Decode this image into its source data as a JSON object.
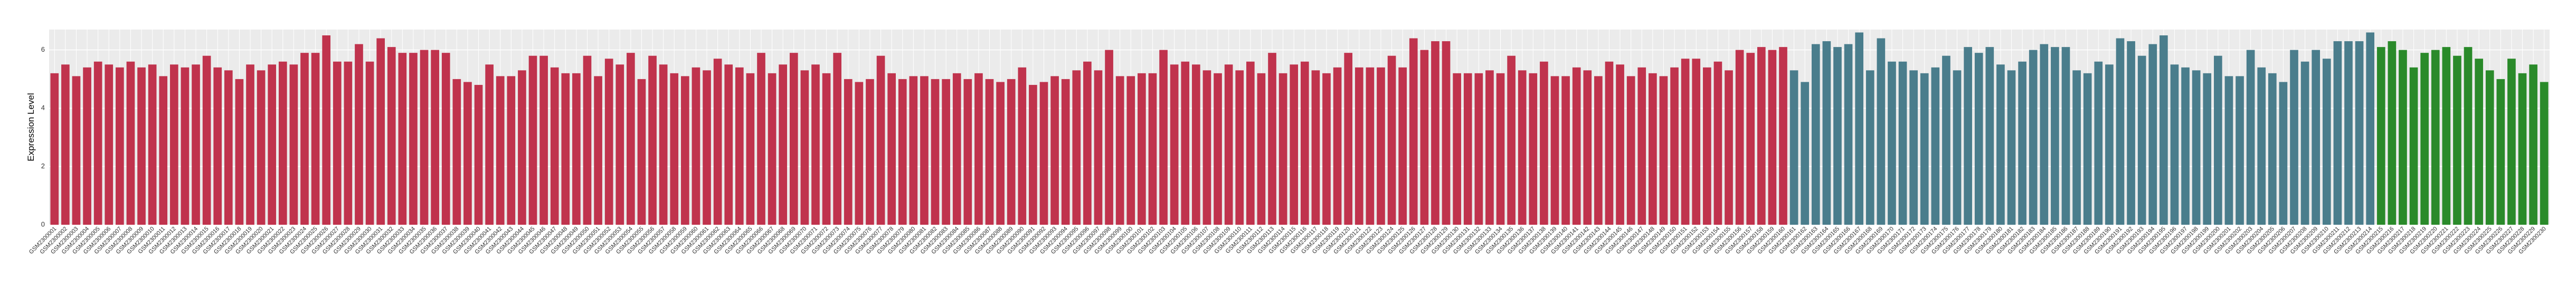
{
  "chart_data": {
    "type": "bar",
    "y_label": "Expression Level",
    "ylim": [
      0,
      6.7
    ],
    "yticks": [
      0,
      2,
      4,
      6
    ],
    "grid": true,
    "categories": [
      "GSM2300001",
      "GSM2300002",
      "GSM2300003",
      "GSM2300004",
      "GSM2300005",
      "GSM2300006",
      "GSM2300007",
      "GSM2300008",
      "GSM2300009",
      "GSM2300010",
      "GSM2300011",
      "GSM2300012",
      "GSM2300013",
      "GSM2300014",
      "GSM2300015",
      "GSM2300016",
      "GSM2300017",
      "GSM2300018",
      "GSM2300019",
      "GSM2300020",
      "GSM2300021",
      "GSM2300022",
      "GSM2300023",
      "GSM2300024",
      "GSM2300025",
      "GSM2300026",
      "GSM2300027",
      "GSM2300028",
      "GSM2300029",
      "GSM2300030",
      "GSM2300031",
      "GSM2300032",
      "GSM2300033",
      "GSM2300034",
      "GSM2300035",
      "GSM2300036",
      "GSM2300037",
      "GSM2300038",
      "GSM2300039",
      "GSM2300040",
      "GSM2300041",
      "GSM2300042",
      "GSM2300043",
      "GSM2300044",
      "GSM2300045",
      "GSM2300046",
      "GSM2300047",
      "GSM2300048",
      "GSM2300049",
      "GSM2300050",
      "GSM2300051",
      "GSM2300052",
      "GSM2300053",
      "GSM2300054",
      "GSM2300055",
      "GSM2300056",
      "GSM2300057",
      "GSM2300058",
      "GSM2300059",
      "GSM2300060",
      "GSM2300061",
      "GSM2300062",
      "GSM2300063",
      "GSM2300064",
      "GSM2300065",
      "GSM2300066",
      "GSM2300067",
      "GSM2300068",
      "GSM2300069",
      "GSM2300070",
      "GSM2300071",
      "GSM2300072",
      "GSM2300073",
      "GSM2300074",
      "GSM2300075",
      "GSM2300076",
      "GSM2300077",
      "GSM2300078",
      "GSM2300079",
      "GSM2300080",
      "GSM2300081",
      "GSM2300082",
      "GSM2300083",
      "GSM2300084",
      "GSM2300085",
      "GSM2300086",
      "GSM2300087",
      "GSM2300088",
      "GSM2300089",
      "GSM2300090",
      "GSM2300091",
      "GSM2300092",
      "GSM2300093",
      "GSM2300094",
      "GSM2300095",
      "GSM2300096",
      "GSM2300097",
      "GSM2300098",
      "GSM2300099",
      "GSM2300100",
      "GSM2300101",
      "GSM2300102",
      "GSM2300103",
      "GSM2300104",
      "GSM2300105",
      "GSM2300106",
      "GSM2300107",
      "GSM2300108",
      "GSM2300109",
      "GSM2300110",
      "GSM2300111",
      "GSM2300112",
      "GSM2300113",
      "GSM2300114",
      "GSM2300115",
      "GSM2300116",
      "GSM2300117",
      "GSM2300118",
      "GSM2300119",
      "GSM2300120",
      "GSM2300121",
      "GSM2300122",
      "GSM2300123",
      "GSM2300124",
      "GSM2300125",
      "GSM2300126",
      "GSM2300127",
      "GSM2300128",
      "GSM2300129",
      "GSM2300130",
      "GSM2300131",
      "GSM2300132",
      "GSM2300133",
      "GSM2300134",
      "GSM2300135",
      "GSM2300136",
      "GSM2300137",
      "GSM2300138",
      "GSM2300139",
      "GSM2300140",
      "GSM2300141",
      "GSM2300142",
      "GSM2300143",
      "GSM2300144",
      "GSM2300145",
      "GSM2300146",
      "GSM2300147",
      "GSM2300148",
      "GSM2300149",
      "GSM2300150",
      "GSM2300151",
      "GSM2300152",
      "GSM2300153",
      "GSM2300154",
      "GSM2300155",
      "GSM2300156",
      "GSM2300157",
      "GSM2300158",
      "GSM2300159",
      "GSM2300160",
      "GSM2300161",
      "GSM2300162",
      "GSM2300163",
      "GSM2300164",
      "GSM2300165",
      "GSM2300166",
      "GSM2300167",
      "GSM2300168",
      "GSM2300169",
      "GSM2300170",
      "GSM2300171",
      "GSM2300172",
      "GSM2300173",
      "GSM2300174",
      "GSM2300175",
      "GSM2300176",
      "GSM2300177",
      "GSM2300178",
      "GSM2300179",
      "GSM2300180",
      "GSM2300181",
      "GSM2300182",
      "GSM2300183",
      "GSM2300184",
      "GSM2300185",
      "GSM2300186",
      "GSM2300187",
      "GSM2300188",
      "GSM2300189",
      "GSM2300190",
      "GSM2300191",
      "GSM2300192",
      "GSM2300193",
      "GSM2300194",
      "GSM2300195",
      "GSM2300196",
      "GSM2300197",
      "GSM2300198",
      "GSM2300199",
      "GSM2300200",
      "GSM2300201",
      "GSM2300202",
      "GSM2300203",
      "GSM2300204",
      "GSM2300205",
      "GSM2300206",
      "GSM2300207",
      "GSM2300208",
      "GSM2300209",
      "GSM2300210",
      "GSM2300211",
      "GSM2300212",
      "GSM2300213",
      "GSM2300214",
      "GSM2300215",
      "GSM2300216",
      "GSM2300217",
      "GSM2300218",
      "GSM2300219",
      "GSM2300220",
      "GSM2300221",
      "GSM2300222",
      "GSM2300223",
      "GSM2300224",
      "GSM2300225",
      "GSM2300226",
      "GSM2300227",
      "GSM2300228",
      "GSM2300229",
      "GSM2300230"
    ],
    "values": [
      5.2,
      5.5,
      5.1,
      5.4,
      5.6,
      5.5,
      5.4,
      5.6,
      5.4,
      5.5,
      5.1,
      5.5,
      5.4,
      5.5,
      5.8,
      5.4,
      5.3,
      5.0,
      5.5,
      5.3,
      5.5,
      5.6,
      5.5,
      5.9,
      5.9,
      6.5,
      5.6,
      5.6,
      6.2,
      5.6,
      6.4,
      6.1,
      5.9,
      5.9,
      6.0,
      6.0,
      5.9,
      5.0,
      4.9,
      4.8,
      5.5,
      5.1,
      5.1,
      5.3,
      5.8,
      5.8,
      5.4,
      5.2,
      5.2,
      5.8,
      5.1,
      5.7,
      5.5,
      5.9,
      5.0,
      5.8,
      5.5,
      5.2,
      5.1,
      5.4,
      5.3,
      5.7,
      5.5,
      5.4,
      5.2,
      5.9,
      5.2,
      5.5,
      5.9,
      5.3,
      5.5,
      5.2,
      5.9,
      5.0,
      4.9,
      5.0,
      5.8,
      5.2,
      5.0,
      5.1,
      5.1,
      5.0,
      5.0,
      5.2,
      5.0,
      5.2,
      5.0,
      4.9,
      5.0,
      5.4,
      4.8,
      4.9,
      5.1,
      5.0,
      5.3,
      5.6,
      5.3,
      6.0,
      5.1,
      5.1,
      5.2,
      5.2,
      6.0,
      5.5,
      5.6,
      5.5,
      5.3,
      5.2,
      5.5,
      5.3,
      5.6,
      5.2,
      5.9,
      5.2,
      5.5,
      5.6,
      5.3,
      5.2,
      5.4,
      5.9,
      5.4,
      5.4,
      5.4,
      5.8,
      5.4,
      6.4,
      6.0,
      6.3,
      6.3,
      5.2,
      5.2,
      5.2,
      5.3,
      5.2,
      5.8,
      5.3,
      5.2,
      5.6,
      5.1,
      5.1,
      5.4,
      5.3,
      5.1,
      5.6,
      5.5,
      5.1,
      5.4,
      5.2,
      5.1,
      5.4,
      5.7,
      5.7,
      5.4,
      5.6,
      5.3,
      6.0,
      5.9,
      6.1,
      6.0,
      6.1,
      5.3,
      4.9,
      6.2,
      6.3,
      6.1,
      6.2,
      6.6,
      5.3,
      6.4,
      5.6,
      5.6,
      5.3,
      5.2,
      5.4,
      5.8,
      5.3,
      6.1,
      5.9,
      6.1,
      5.5,
      5.3,
      5.6,
      6.0,
      6.2,
      6.1,
      6.1,
      5.3,
      5.2,
      5.6,
      5.5,
      6.4,
      6.3,
      5.8,
      6.2,
      6.5,
      5.5,
      5.4,
      5.3,
      5.2,
      5.8,
      5.1,
      5.1,
      6.0,
      5.4,
      5.2,
      4.9,
      6.0,
      5.6,
      6.0,
      5.7,
      6.3,
      6.3,
      6.3,
      6.6,
      6.1,
      6.3,
      6.0,
      5.4,
      5.9,
      6.0,
      6.1,
      5.8,
      6.1,
      5.7,
      5.3,
      5.0,
      5.7,
      5.2,
      5.5,
      4.9
    ],
    "colors": [
      "#c0334d",
      "#c0334d",
      "#c0334d",
      "#c0334d",
      "#c0334d",
      "#c0334d",
      "#c0334d",
      "#c0334d",
      "#c0334d",
      "#c0334d",
      "#c0334d",
      "#c0334d",
      "#c0334d",
      "#c0334d",
      "#c0334d",
      "#c0334d",
      "#c0334d",
      "#c0334d",
      "#c0334d",
      "#c0334d",
      "#c0334d",
      "#c0334d",
      "#c0334d",
      "#c0334d",
      "#c0334d",
      "#c0334d",
      "#c0334d",
      "#c0334d",
      "#c0334d",
      "#c0334d",
      "#c0334d",
      "#c0334d",
      "#c0334d",
      "#c0334d",
      "#c0334d",
      "#c0334d",
      "#c0334d",
      "#c0334d",
      "#c0334d",
      "#c0334d",
      "#c0334d",
      "#c0334d",
      "#c0334d",
      "#c0334d",
      "#c0334d",
      "#c0334d",
      "#c0334d",
      "#c0334d",
      "#c0334d",
      "#c0334d",
      "#c0334d",
      "#c0334d",
      "#c0334d",
      "#c0334d",
      "#c0334d",
      "#c0334d",
      "#c0334d",
      "#c0334d",
      "#c0334d",
      "#c0334d",
      "#c0334d",
      "#c0334d",
      "#c0334d",
      "#c0334d",
      "#c0334d",
      "#c0334d",
      "#c0334d",
      "#c0334d",
      "#c0334d",
      "#c0334d",
      "#c0334d",
      "#c0334d",
      "#c0334d",
      "#c0334d",
      "#c0334d",
      "#c0334d",
      "#c0334d",
      "#c0334d",
      "#c0334d",
      "#c0334d",
      "#c0334d",
      "#c0334d",
      "#c0334d",
      "#c0334d",
      "#c0334d",
      "#c0334d",
      "#c0334d",
      "#c0334d",
      "#c0334d",
      "#c0334d",
      "#c0334d",
      "#c0334d",
      "#c0334d",
      "#c0334d",
      "#c0334d",
      "#c0334d",
      "#c0334d",
      "#c0334d",
      "#c0334d",
      "#c0334d",
      "#c0334d",
      "#c0334d",
      "#c0334d",
      "#c0334d",
      "#c0334d",
      "#c0334d",
      "#c0334d",
      "#c0334d",
      "#c0334d",
      "#c0334d",
      "#c0334d",
      "#c0334d",
      "#c0334d",
      "#c0334d",
      "#c0334d",
      "#c0334d",
      "#c0334d",
      "#c0334d",
      "#c0334d",
      "#c0334d",
      "#c0334d",
      "#c0334d",
      "#c0334d",
      "#c0334d",
      "#c0334d",
      "#c0334d",
      "#c0334d",
      "#c0334d",
      "#c0334d",
      "#c0334d",
      "#c0334d",
      "#c0334d",
      "#c0334d",
      "#c0334d",
      "#c0334d",
      "#c0334d",
      "#c0334d",
      "#c0334d",
      "#c0334d",
      "#c0334d",
      "#c0334d",
      "#c0334d",
      "#c0334d",
      "#c0334d",
      "#c0334d",
      "#c0334d",
      "#c0334d",
      "#c0334d",
      "#c0334d",
      "#c0334d",
      "#c0334d",
      "#c0334d",
      "#c0334d",
      "#c0334d",
      "#c0334d",
      "#c0334d",
      "#c0334d",
      "#c0334d",
      "#c0334d",
      "#c0334d",
      "#4a7d8c",
      "#4a7d8c",
      "#4a7d8c",
      "#4a7d8c",
      "#4a7d8c",
      "#4a7d8c",
      "#4a7d8c",
      "#4a7d8c",
      "#4a7d8c",
      "#4a7d8c",
      "#4a7d8c",
      "#4a7d8c",
      "#4a7d8c",
      "#4a7d8c",
      "#4a7d8c",
      "#4a7d8c",
      "#4a7d8c",
      "#4a7d8c",
      "#4a7d8c",
      "#4a7d8c",
      "#4a7d8c",
      "#4a7d8c",
      "#4a7d8c",
      "#4a7d8c",
      "#4a7d8c",
      "#4a7d8c",
      "#4a7d8c",
      "#4a7d8c",
      "#4a7d8c",
      "#4a7d8c",
      "#4a7d8c",
      "#4a7d8c",
      "#4a7d8c",
      "#4a7d8c",
      "#4a7d8c",
      "#4a7d8c",
      "#4a7d8c",
      "#4a7d8c",
      "#4a7d8c",
      "#4a7d8c",
      "#4a7d8c",
      "#4a7d8c",
      "#4a7d8c",
      "#4a7d8c",
      "#4a7d8c",
      "#4a7d8c",
      "#4a7d8c",
      "#4a7d8c",
      "#4a7d8c",
      "#4a7d8c",
      "#4a7d8c",
      "#4a7d8c",
      "#4a7d8c",
      "#4a7d8c",
      "#2a8a2a",
      "#2a8a2a",
      "#2a8a2a",
      "#2a8a2a",
      "#2a8a2a",
      "#2a8a2a",
      "#2a8a2a",
      "#2a8a2a",
      "#2a8a2a",
      "#2a8a2a",
      "#2a8a2a",
      "#2a8a2a",
      "#2a8a2a",
      "#2a8a2a",
      "#2a8a2a",
      "#2a8a2a"
    ]
  }
}
